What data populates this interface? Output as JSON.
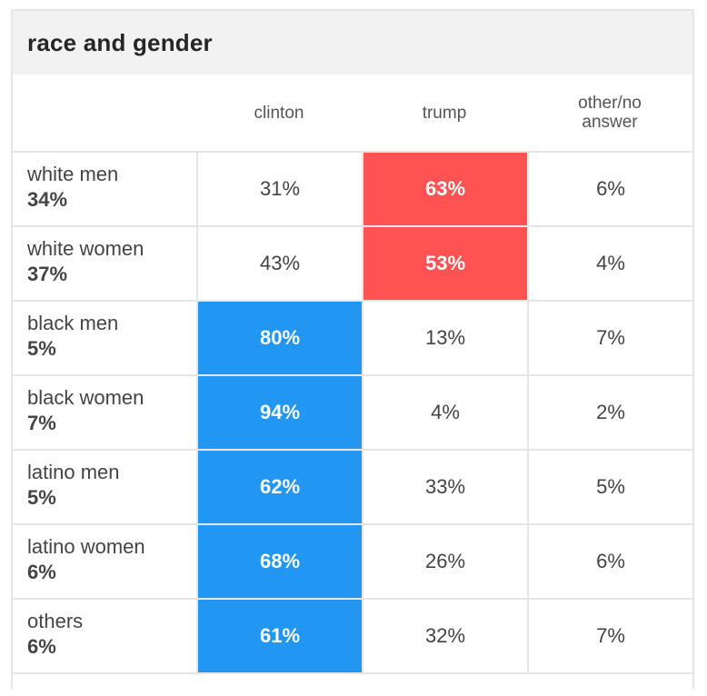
{
  "colors": {
    "clinton_win": "#2196f3",
    "trump_win": "#ff5252",
    "header_bg": "#f2f2f2",
    "grid": "#e6e6e6"
  },
  "chart_data": {
    "type": "table",
    "title": "race and gender",
    "columns": [
      "clinton",
      "trump",
      "other/no answer"
    ],
    "rows": [
      {
        "label": "white men",
        "share": "34%",
        "values": [
          "31%",
          "63%",
          "6%"
        ],
        "winner": 1
      },
      {
        "label": "white women",
        "share": "37%",
        "values": [
          "43%",
          "53%",
          "4%"
        ],
        "winner": 1
      },
      {
        "label": "black men",
        "share": "5%",
        "values": [
          "80%",
          "13%",
          "7%"
        ],
        "winner": 0
      },
      {
        "label": "black women",
        "share": "7%",
        "values": [
          "94%",
          "4%",
          "2%"
        ],
        "winner": 0
      },
      {
        "label": "latino men",
        "share": "5%",
        "values": [
          "62%",
          "33%",
          "5%"
        ],
        "winner": 0
      },
      {
        "label": "latino women",
        "share": "6%",
        "values": [
          "68%",
          "26%",
          "6%"
        ],
        "winner": 0
      },
      {
        "label": "others",
        "share": "6%",
        "values": [
          "61%",
          "32%",
          "7%"
        ],
        "winner": 0
      }
    ]
  }
}
